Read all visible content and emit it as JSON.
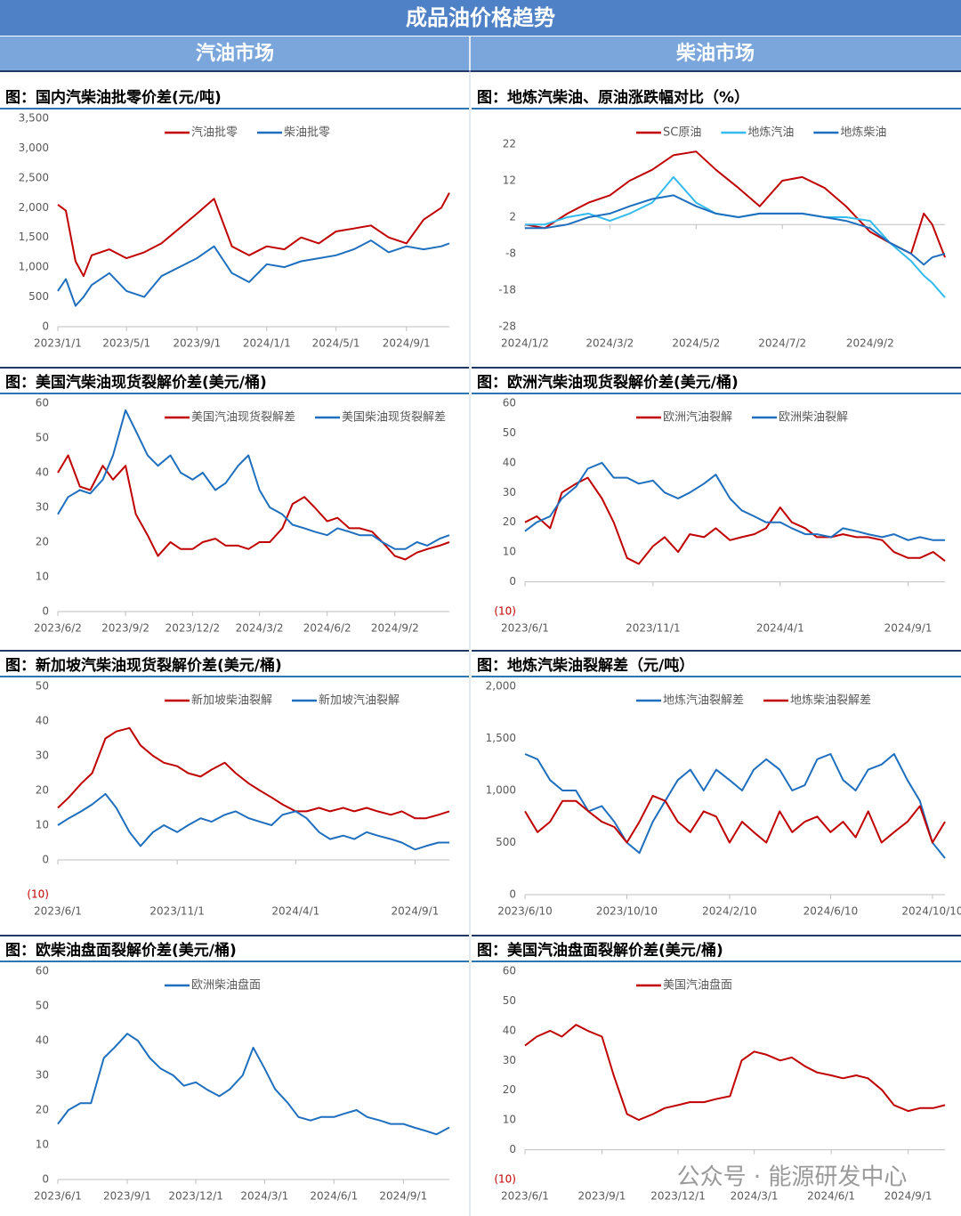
{
  "header": {
    "title": "成品油价格趋势",
    "left": "汽油市场",
    "right": "柴油市场"
  },
  "watermark": "公众号 · 能源研发中心",
  "chart_data": [
    {
      "type": "line",
      "title": "图：国内汽柴油批零价差(元/吨)",
      "legend": "top",
      "x": [
        "2023/1/1",
        "2023/1/15",
        "2023/2/1",
        "2023/2/15",
        "2023/3/1",
        "2023/4/1",
        "2023/5/1",
        "2023/6/1",
        "2023/7/1",
        "2023/8/1",
        "2023/9/1",
        "2023/10/1",
        "2023/11/1",
        "2023/12/1",
        "2024/1/1",
        "2024/2/1",
        "2024/3/1",
        "2024/4/1",
        "2024/5/1",
        "2024/6/1",
        "2024/7/1",
        "2024/8/1",
        "2024/9/1",
        "2024/10/1",
        "2024/11/1",
        "2024/11/15"
      ],
      "xticks": [
        "2023/1/1",
        "2023/5/1",
        "2023/9/1",
        "2024/1/1",
        "2024/5/1",
        "2024/9/1"
      ],
      "ylim": [
        0,
        3500
      ],
      "yticks": [
        0,
        500,
        {
          "value": 1000,
          "label": "1,000"
        },
        {
          "value": 1500,
          "label": "1,500"
        },
        {
          "value": 2000,
          "label": "2,000"
        },
        {
          "value": 2500,
          "label": "2,500"
        },
        {
          "value": 3000,
          "label": "3,000"
        },
        {
          "value": 3500,
          "label": "3,500"
        }
      ],
      "series": [
        {
          "name": "汽油批零",
          "color": "#c00000",
          "values": [
            2050,
            1950,
            1100,
            850,
            1200,
            1300,
            1150,
            1250,
            1400,
            1650,
            1900,
            2150,
            1350,
            1200,
            1350,
            1300,
            1500,
            1400,
            1600,
            1650,
            1700,
            1500,
            1400,
            1800,
            2000,
            2250
          ]
        },
        {
          "name": "柴油批零",
          "color": "#1f6fbf",
          "values": [
            600,
            800,
            350,
            500,
            700,
            900,
            600,
            500,
            850,
            1000,
            1150,
            1350,
            900,
            750,
            1050,
            1000,
            1100,
            1150,
            1200,
            1300,
            1450,
            1250,
            1350,
            1300,
            1350,
            1400
          ]
        }
      ]
    },
    {
      "type": "line",
      "title": "图：地炼汽柴油、原油涨跌幅对比（%）",
      "legend": "top",
      "x": [
        "2024/1/2",
        "2024/1/16",
        "2024/2/1",
        "2024/2/16",
        "2024/3/2",
        "2024/3/16",
        "2024/4/1",
        "2024/4/16",
        "2024/5/2",
        "2024/5/16",
        "2024/6/1",
        "2024/6/16",
        "2024/7/2",
        "2024/7/16",
        "2024/8/1",
        "2024/8/16",
        "2024/9/2",
        "2024/9/16",
        "2024/10/1",
        "2024/10/10",
        "2024/10/16",
        "2024/10/25"
      ],
      "xticks": [
        "2024/1/2",
        "2024/3/2",
        "2024/5/2",
        "2024/7/2",
        "2024/9/2"
      ],
      "ylim": [
        -28,
        22
      ],
      "yticks": [
        -28,
        -18,
        -8,
        2,
        12,
        22
      ],
      "series": [
        {
          "name": "SC原油",
          "color": "#c00000",
          "values": [
            0,
            -1,
            3,
            6,
            8,
            12,
            15,
            19,
            20,
            15,
            10,
            5,
            12,
            13,
            10,
            5,
            -2,
            -5,
            -8,
            3,
            0,
            -9
          ]
        },
        {
          "name": "地炼汽油",
          "color": "#33bbee",
          "values": [
            0,
            0,
            2,
            3,
            1,
            3,
            6,
            13,
            6,
            3,
            2,
            3,
            3,
            3,
            2,
            2,
            1,
            -5,
            -10,
            -14,
            -16,
            -20
          ]
        },
        {
          "name": "地炼柴油",
          "color": "#1f6fbf",
          "values": [
            -1,
            -1,
            0,
            2,
            3,
            5,
            7,
            8,
            5,
            3,
            2,
            3,
            3,
            3,
            2,
            1,
            -1,
            -5,
            -8,
            -11,
            -9,
            -8
          ]
        }
      ]
    },
    {
      "type": "line",
      "title": "图：美国汽柴油现货裂解价差(美元/桶)",
      "legend": "top",
      "x": [
        "2023/6/2",
        "2023/6/16",
        "2023/7/2",
        "2023/7/16",
        "2023/8/2",
        "2023/8/16",
        "2023/9/2",
        "2023/9/16",
        "2023/10/2",
        "2023/10/16",
        "2023/11/2",
        "2023/11/16",
        "2023/12/2",
        "2023/12/16",
        "2024/1/2",
        "2024/1/16",
        "2024/2/2",
        "2024/2/16",
        "2024/3/2",
        "2024/3/16",
        "2024/4/2",
        "2024/4/16",
        "2024/5/2",
        "2024/5/16",
        "2024/6/2",
        "2024/6/16",
        "2024/7/2",
        "2024/7/16",
        "2024/8/2",
        "2024/8/16",
        "2024/9/2",
        "2024/9/16",
        "2024/10/2",
        "2024/10/16",
        "2024/11/2",
        "2024/11/15"
      ],
      "xticks": [
        "2023/6/2",
        "2023/9/2",
        "2023/12/2",
        "2024/3/2",
        "2024/6/2",
        "2024/9/2"
      ],
      "ylim": [
        0,
        60
      ],
      "yticks": [
        0,
        10,
        20,
        30,
        40,
        50,
        60
      ],
      "series": [
        {
          "name": "美国汽油现货裂解差",
          "color": "#c00000",
          "values": [
            40,
            45,
            36,
            35,
            42,
            38,
            42,
            28,
            22,
            16,
            20,
            18,
            18,
            20,
            21,
            19,
            19,
            18,
            20,
            20,
            24,
            31,
            33,
            30,
            26,
            27,
            24,
            24,
            23,
            20,
            16,
            15,
            17,
            18,
            19,
            20
          ]
        },
        {
          "name": "美国柴油现货裂解差",
          "color": "#1f6fbf",
          "values": [
            28,
            33,
            35,
            34,
            38,
            45,
            58,
            52,
            45,
            42,
            45,
            40,
            38,
            40,
            35,
            37,
            42,
            45,
            35,
            30,
            28,
            25,
            24,
            23,
            22,
            24,
            23,
            22,
            22,
            20,
            18,
            18,
            20,
            19,
            21,
            22
          ]
        }
      ]
    },
    {
      "type": "line",
      "title": "图：欧洲汽柴油现货裂解价差(美元/桶)",
      "legend": "top",
      "x": [
        "2023/6/1",
        "2023/6/15",
        "2023/7/1",
        "2023/7/15",
        "2023/8/1",
        "2023/8/15",
        "2023/9/1",
        "2023/9/15",
        "2023/10/1",
        "2023/10/15",
        "2023/11/1",
        "2023/11/15",
        "2023/12/1",
        "2023/12/15",
        "2024/1/1",
        "2024/1/15",
        "2024/2/1",
        "2024/2/15",
        "2024/3/1",
        "2024/3/15",
        "2024/4/1",
        "2024/4/15",
        "2024/5/1",
        "2024/5/15",
        "2024/6/1",
        "2024/6/15",
        "2024/7/1",
        "2024/7/15",
        "2024/8/1",
        "2024/8/15",
        "2024/9/1",
        "2024/9/15",
        "2024/10/1",
        "2024/10/15"
      ],
      "xticks": [
        "2023/6/1",
        "2023/11/1",
        "2024/4/1",
        "2024/9/1"
      ],
      "ylim": [
        -10,
        60
      ],
      "yticks": [
        {
          "value": -10,
          "label": "(10)"
        },
        0,
        10,
        20,
        30,
        40,
        50,
        60
      ],
      "series": [
        {
          "name": "欧洲汽油裂解",
          "color": "#c00000",
          "values": [
            20,
            22,
            18,
            30,
            33,
            35,
            28,
            20,
            8,
            6,
            12,
            15,
            10,
            16,
            15,
            18,
            14,
            15,
            16,
            18,
            25,
            20,
            18,
            15,
            15,
            16,
            15,
            15,
            14,
            10,
            8,
            8,
            10,
            7
          ]
        },
        {
          "name": "欧洲柴油裂解",
          "color": "#1f6fbf",
          "values": [
            17,
            20,
            22,
            28,
            32,
            38,
            40,
            35,
            35,
            33,
            34,
            30,
            28,
            30,
            33,
            36,
            28,
            24,
            22,
            20,
            20,
            18,
            16,
            16,
            15,
            18,
            17,
            16,
            15,
            16,
            14,
            15,
            14,
            14
          ]
        }
      ]
    },
    {
      "type": "line",
      "title": "图：新加坡汽柴油现货裂解价差(美元/桶)",
      "legend": "top",
      "x": [
        "2023/6/1",
        "2023/6/15",
        "2023/7/1",
        "2023/7/15",
        "2023/8/1",
        "2023/8/15",
        "2023/9/1",
        "2023/9/15",
        "2023/10/1",
        "2023/10/15",
        "2023/11/1",
        "2023/11/15",
        "2023/12/1",
        "2023/12/15",
        "2024/1/1",
        "2024/1/15",
        "2024/2/1",
        "2024/2/15",
        "2024/3/1",
        "2024/3/15",
        "2024/4/1",
        "2024/4/15",
        "2024/5/1",
        "2024/5/15",
        "2024/6/1",
        "2024/6/15",
        "2024/7/1",
        "2024/7/15",
        "2024/8/1",
        "2024/8/15",
        "2024/9/1",
        "2024/9/15",
        "2024/10/1",
        "2024/10/15"
      ],
      "xticks": [
        "2023/6/1",
        "2023/11/1",
        "2024/4/1",
        "2024/9/1"
      ],
      "ylim": [
        -10,
        50
      ],
      "yticks": [
        {
          "value": -10,
          "label": "(10)"
        },
        0,
        10,
        20,
        30,
        40,
        50
      ],
      "series": [
        {
          "name": "新加坡柴油裂解",
          "color": "#c00000",
          "values": [
            15,
            18,
            22,
            25,
            35,
            37,
            38,
            33,
            30,
            28,
            27,
            25,
            24,
            26,
            28,
            25,
            22,
            20,
            18,
            16,
            14,
            14,
            15,
            14,
            15,
            14,
            15,
            14,
            13,
            14,
            12,
            12,
            13,
            14
          ]
        },
        {
          "name": "新加坡汽油裂解",
          "color": "#1f6fbf",
          "values": [
            10,
            12,
            14,
            16,
            19,
            15,
            8,
            4,
            8,
            10,
            8,
            10,
            12,
            11,
            13,
            14,
            12,
            11,
            10,
            13,
            14,
            12,
            8,
            6,
            7,
            6,
            8,
            7,
            6,
            5,
            3,
            4,
            5,
            5
          ]
        }
      ]
    },
    {
      "type": "line",
      "title": "图：地炼汽柴油裂解差（元/吨）",
      "legend": "top",
      "x": [
        "2023/6/10",
        "2023/6/25",
        "2023/7/10",
        "2023/7/25",
        "2023/8/10",
        "2023/8/25",
        "2023/9/10",
        "2023/9/25",
        "2023/10/10",
        "2023/10/25",
        "2023/11/10",
        "2023/11/25",
        "2023/12/10",
        "2023/12/25",
        "2024/1/10",
        "2024/1/25",
        "2024/2/10",
        "2024/2/25",
        "2024/3/10",
        "2024/3/25",
        "2024/4/10",
        "2024/4/25",
        "2024/5/10",
        "2024/5/25",
        "2024/6/10",
        "2024/6/25",
        "2024/7/10",
        "2024/7/25",
        "2024/8/10",
        "2024/8/25",
        "2024/9/10",
        "2024/9/25",
        "2024/10/10",
        "2024/10/25"
      ],
      "xticks": [
        "2023/6/10",
        "2023/10/10",
        "2024/2/10",
        "2024/6/10",
        "2024/10/10"
      ],
      "ylim": [
        0,
        2000
      ],
      "yticks": [
        0,
        500,
        {
          "value": 1000,
          "label": "1,000"
        },
        {
          "value": 1500,
          "label": "1,500"
        },
        {
          "value": 2000,
          "label": "2,000"
        }
      ],
      "series": [
        {
          "name": "地炼汽油裂解差",
          "color": "#1f6fbf",
          "values": [
            1350,
            1300,
            1100,
            1000,
            1000,
            800,
            850,
            700,
            500,
            400,
            700,
            900,
            1100,
            1200,
            1000,
            1200,
            1100,
            1000,
            1200,
            1300,
            1200,
            1000,
            1050,
            1300,
            1350,
            1100,
            1000,
            1200,
            1250,
            1350,
            1100,
            900,
            500,
            350
          ]
        },
        {
          "name": "地炼柴油裂解差",
          "color": "#c00000",
          "values": [
            800,
            600,
            700,
            900,
            900,
            800,
            700,
            650,
            500,
            700,
            950,
            900,
            700,
            600,
            800,
            750,
            500,
            700,
            600,
            500,
            800,
            600,
            700,
            750,
            600,
            700,
            550,
            800,
            500,
            600,
            700,
            850,
            500,
            700
          ]
        }
      ]
    },
    {
      "type": "line",
      "title": "图：欧柴油盘面裂解价差(美元/桶)",
      "legend": "top",
      "x": [
        "2023/6/1",
        "2023/6/15",
        "2023/7/1",
        "2023/7/15",
        "2023/8/1",
        "2023/8/15",
        "2023/9/1",
        "2023/9/15",
        "2023/10/1",
        "2023/10/15",
        "2023/11/1",
        "2023/11/15",
        "2023/12/1",
        "2023/12/15",
        "2024/1/1",
        "2024/1/15",
        "2024/2/1",
        "2024/2/15",
        "2024/3/1",
        "2024/3/15",
        "2024/4/1",
        "2024/4/15",
        "2024/5/1",
        "2024/5/15",
        "2024/6/1",
        "2024/6/15",
        "2024/7/1",
        "2024/7/15",
        "2024/8/1",
        "2024/8/15",
        "2024/9/1",
        "2024/9/15",
        "2024/10/1",
        "2024/10/15",
        "2024/11/1"
      ],
      "xticks": [
        "2023/6/1",
        "2023/9/1",
        "2023/12/1",
        "2024/3/1",
        "2024/6/1",
        "2024/9/1"
      ],
      "ylim": [
        0,
        60
      ],
      "yticks": [
        0,
        10,
        20,
        30,
        40,
        50,
        60
      ],
      "series": [
        {
          "name": "欧洲柴油盘面",
          "color": "#1f6fbf",
          "values": [
            16,
            20,
            22,
            22,
            35,
            38,
            42,
            40,
            35,
            32,
            30,
            27,
            28,
            26,
            24,
            26,
            30,
            38,
            32,
            26,
            22,
            18,
            17,
            18,
            18,
            19,
            20,
            18,
            17,
            16,
            16,
            15,
            14,
            13,
            15
          ]
        }
      ]
    },
    {
      "type": "line",
      "title": "图：美国汽油盘面裂解价差(美元/桶)",
      "legend": "top",
      "x": [
        "2023/6/1",
        "2023/6/15",
        "2023/7/1",
        "2023/7/15",
        "2023/8/1",
        "2023/8/15",
        "2023/9/1",
        "2023/9/15",
        "2023/10/1",
        "2023/10/15",
        "2023/11/1",
        "2023/11/15",
        "2023/12/1",
        "2023/12/15",
        "2024/1/1",
        "2024/1/15",
        "2024/2/1",
        "2024/2/15",
        "2024/3/1",
        "2024/3/15",
        "2024/4/1",
        "2024/4/15",
        "2024/5/1",
        "2024/5/15",
        "2024/6/1",
        "2024/6/15",
        "2024/7/1",
        "2024/7/15",
        "2024/8/1",
        "2024/8/15",
        "2024/9/1",
        "2024/9/15",
        "2024/10/1",
        "2024/10/15"
      ],
      "xticks": [
        "2023/6/1",
        "2023/9/1",
        "2023/12/1",
        "2024/3/1",
        "2024/6/1",
        "2024/9/1"
      ],
      "ylim": [
        -10,
        60
      ],
      "yticks": [
        {
          "value": -10,
          "label": "(10)"
        },
        0,
        10,
        20,
        30,
        40,
        50,
        60
      ],
      "series": [
        {
          "name": "美国汽油盘面",
          "color": "#c00000",
          "values": [
            35,
            38,
            40,
            38,
            42,
            40,
            38,
            25,
            12,
            10,
            12,
            14,
            15,
            16,
            16,
            17,
            18,
            30,
            33,
            32,
            30,
            31,
            28,
            26,
            25,
            24,
            25,
            24,
            20,
            15,
            13,
            14,
            14,
            15
          ]
        }
      ]
    }
  ]
}
